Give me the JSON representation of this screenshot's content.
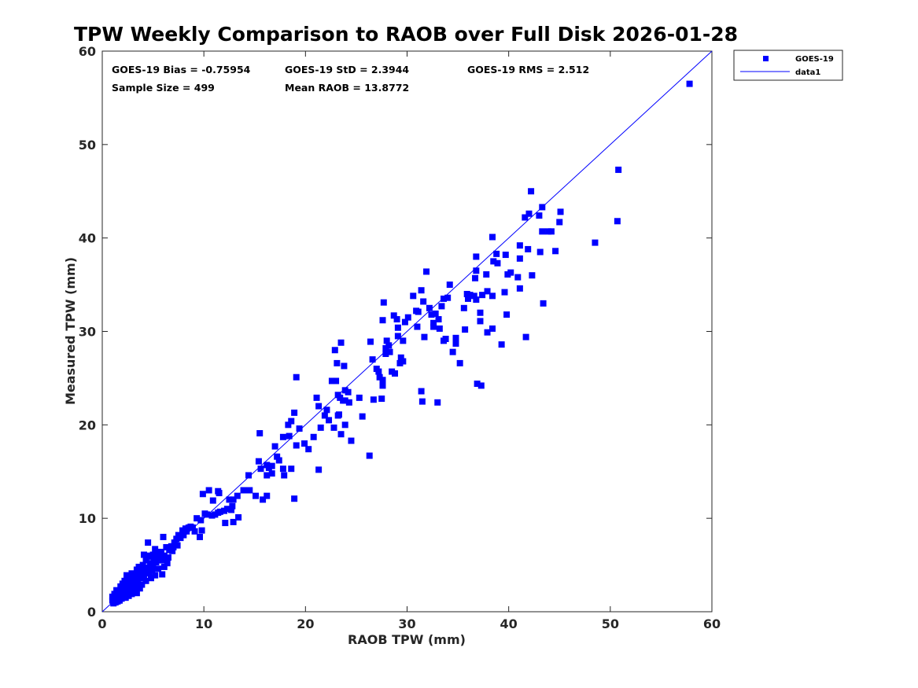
{
  "chart_data": {
    "type": "scatter",
    "title": "TPW Weekly Comparison to RAOB over Full Disk 2026-01-28",
    "xlabel": "RAOB TPW (mm)",
    "ylabel": "Measured TPW (mm)",
    "xlim": [
      0,
      60
    ],
    "ylim": [
      0,
      60
    ],
    "xticks": [
      "0",
      "10",
      "20",
      "30",
      "40",
      "50",
      "60"
    ],
    "yticks": [
      "0",
      "10",
      "20",
      "30",
      "40",
      "50",
      "60"
    ],
    "grid": false,
    "legend_position": "outside top-right",
    "stats": {
      "bias": "GOES-19 Bias = -0.75954",
      "std": "GOES-19 StD = 2.3944",
      "rms": "GOES-19 RMS = 2.512",
      "sample_size": "Sample Size = 499",
      "mean_raob": "Mean RAOB = 13.8772"
    },
    "series": [
      {
        "name": "GOES-19",
        "marker": "square",
        "color": "#0000ff",
        "points": [
          [
            57.8,
            56.5
          ],
          [
            50.8,
            47.3
          ],
          [
            50.7,
            41.8
          ],
          [
            48.5,
            39.5
          ],
          [
            45.1,
            42.8
          ],
          [
            45.0,
            41.7
          ],
          [
            44.6,
            38.6
          ],
          [
            43.4,
            33.0
          ],
          [
            43.3,
            40.7
          ],
          [
            43.9,
            40.7
          ],
          [
            44.2,
            40.7
          ],
          [
            43.3,
            43.3
          ],
          [
            43.0,
            42.4
          ],
          [
            43.1,
            38.5
          ],
          [
            42.2,
            45.0
          ],
          [
            42.3,
            36.0
          ],
          [
            42.0,
            42.6
          ],
          [
            41.6,
            42.2
          ],
          [
            41.9,
            38.8
          ],
          [
            41.7,
            29.4
          ],
          [
            41.1,
            37.8
          ],
          [
            41.1,
            34.6
          ],
          [
            41.1,
            39.2
          ],
          [
            40.9,
            35.8
          ],
          [
            40.2,
            36.3
          ],
          [
            39.9,
            36.1
          ],
          [
            39.7,
            38.2
          ],
          [
            39.8,
            31.8
          ],
          [
            39.6,
            34.2
          ],
          [
            39.3,
            28.6
          ],
          [
            38.9,
            37.3
          ],
          [
            38.8,
            38.3
          ],
          [
            38.5,
            37.5
          ],
          [
            38.4,
            30.3
          ],
          [
            38.4,
            33.8
          ],
          [
            38.4,
            40.1
          ],
          [
            37.9,
            29.9
          ],
          [
            37.9,
            34.3
          ],
          [
            37.8,
            36.1
          ],
          [
            37.4,
            33.9
          ],
          [
            37.3,
            24.2
          ],
          [
            37.2,
            31.1
          ],
          [
            37.2,
            32.0
          ],
          [
            36.9,
            24.4
          ],
          [
            36.8,
            33.4
          ],
          [
            36.6,
            33.8
          ],
          [
            36.7,
            35.7
          ],
          [
            36.8,
            36.5
          ],
          [
            36.8,
            38.0
          ],
          [
            36.2,
            33.9
          ],
          [
            36.0,
            33.5
          ],
          [
            35.9,
            34.0
          ],
          [
            35.7,
            30.2
          ],
          [
            35.6,
            32.5
          ],
          [
            35.2,
            26.6
          ],
          [
            34.8,
            29.3
          ],
          [
            34.8,
            28.7
          ],
          [
            34.5,
            27.8
          ],
          [
            34.0,
            33.6
          ],
          [
            34.2,
            35.0
          ],
          [
            33.8,
            29.2
          ],
          [
            33.6,
            29.0
          ],
          [
            33.6,
            33.5
          ],
          [
            33.4,
            32.7
          ],
          [
            33.1,
            31.3
          ],
          [
            32.8,
            31.9
          ],
          [
            32.6,
            30.5
          ],
          [
            32.6,
            30.9
          ],
          [
            33.2,
            30.3
          ],
          [
            33.0,
            22.4
          ],
          [
            32.4,
            31.8
          ],
          [
            32.2,
            32.5
          ],
          [
            31.9,
            36.4
          ],
          [
            31.7,
            29.4
          ],
          [
            31.6,
            33.2
          ],
          [
            31.4,
            23.6
          ],
          [
            31.5,
            22.5
          ],
          [
            31.4,
            34.4
          ],
          [
            31.0,
            30.5
          ],
          [
            31.1,
            32.1
          ],
          [
            30.9,
            32.2
          ],
          [
            30.6,
            33.8
          ],
          [
            30.1,
            31.5
          ],
          [
            29.8,
            31.0
          ],
          [
            29.6,
            26.8
          ],
          [
            29.6,
            29.0
          ],
          [
            29.4,
            27.2
          ],
          [
            29.3,
            26.6
          ],
          [
            29.1,
            30.4
          ],
          [
            29.1,
            29.5
          ],
          [
            29.0,
            31.3
          ],
          [
            28.8,
            25.5
          ],
          [
            28.7,
            31.7
          ],
          [
            28.5,
            25.7
          ],
          [
            28.2,
            28.5
          ],
          [
            28.3,
            27.8
          ],
          [
            28.0,
            29.0
          ],
          [
            27.9,
            28.2
          ],
          [
            27.9,
            27.6
          ],
          [
            27.7,
            33.1
          ],
          [
            27.6,
            31.2
          ],
          [
            27.6,
            24.8
          ],
          [
            27.6,
            24.2
          ],
          [
            27.5,
            22.8
          ],
          [
            27.3,
            25.1
          ],
          [
            27.2,
            25.7
          ],
          [
            27.0,
            26.0
          ],
          [
            26.6,
            27.0
          ],
          [
            26.7,
            22.7
          ],
          [
            26.4,
            28.9
          ],
          [
            26.3,
            16.7
          ],
          [
            25.6,
            20.9
          ],
          [
            25.3,
            22.9
          ],
          [
            24.5,
            18.3
          ],
          [
            24.3,
            22.4
          ],
          [
            24.2,
            23.5
          ],
          [
            23.9,
            23.7
          ],
          [
            23.8,
            26.3
          ],
          [
            23.9,
            22.6
          ],
          [
            23.7,
            22.6
          ],
          [
            23.9,
            20.0
          ],
          [
            23.5,
            28.8
          ],
          [
            23.4,
            22.9
          ],
          [
            23.3,
            21.1
          ],
          [
            23.5,
            19.0
          ],
          [
            23.2,
            21.0
          ],
          [
            23.0,
            24.7
          ],
          [
            23.1,
            26.6
          ],
          [
            22.9,
            28.0
          ],
          [
            23.2,
            23.2
          ],
          [
            22.8,
            19.7
          ],
          [
            22.6,
            24.7
          ],
          [
            22.3,
            20.5
          ],
          [
            22.1,
            21.6
          ],
          [
            21.9,
            21.0
          ],
          [
            21.5,
            19.7
          ],
          [
            21.3,
            22.0
          ],
          [
            21.1,
            22.9
          ],
          [
            21.3,
            15.2
          ],
          [
            20.8,
            18.7
          ],
          [
            20.3,
            17.4
          ],
          [
            19.9,
            18.0
          ],
          [
            19.4,
            19.6
          ],
          [
            19.1,
            17.8
          ],
          [
            19.1,
            25.1
          ],
          [
            18.9,
            21.3
          ],
          [
            18.6,
            20.4
          ],
          [
            18.9,
            12.1
          ],
          [
            18.6,
            15.3
          ],
          [
            18.4,
            18.8
          ],
          [
            18.3,
            20.0
          ],
          [
            17.8,
            18.7
          ],
          [
            17.9,
            14.6
          ],
          [
            17.8,
            15.3
          ],
          [
            17.4,
            16.2
          ],
          [
            17.2,
            16.6
          ],
          [
            17.0,
            17.7
          ],
          [
            16.7,
            14.8
          ],
          [
            16.7,
            15.6
          ],
          [
            16.4,
            15.4
          ],
          [
            16.2,
            15.7
          ],
          [
            16.2,
            14.6
          ],
          [
            16.2,
            12.4
          ],
          [
            15.8,
            12.0
          ],
          [
            15.6,
            15.3
          ],
          [
            15.5,
            19.1
          ],
          [
            15.4,
            16.1
          ],
          [
            15.1,
            12.4
          ],
          [
            14.5,
            13.0
          ],
          [
            14.4,
            14.6
          ],
          [
            13.9,
            13.0
          ],
          [
            13.4,
            10.1
          ],
          [
            13.3,
            12.4
          ],
          [
            12.9,
            12.0
          ],
          [
            12.8,
            11.3
          ],
          [
            12.9,
            9.6
          ],
          [
            12.7,
            10.9
          ],
          [
            12.5,
            12.0
          ],
          [
            12.3,
            11.0
          ],
          [
            12.1,
            9.5
          ],
          [
            12.0,
            10.8
          ],
          [
            11.6,
            10.7
          ],
          [
            11.5,
            12.7
          ],
          [
            11.4,
            12.9
          ],
          [
            11.4,
            10.6
          ],
          [
            11.1,
            10.4
          ],
          [
            10.9,
            11.9
          ],
          [
            10.8,
            10.3
          ],
          [
            10.5,
            13.0
          ],
          [
            10.3,
            10.4
          ],
          [
            10.1,
            10.5
          ],
          [
            9.9,
            12.6
          ],
          [
            9.8,
            8.7
          ],
          [
            9.7,
            9.8
          ],
          [
            9.6,
            8.0
          ],
          [
            9.3,
            10.0
          ],
          [
            9.1,
            8.6
          ],
          [
            8.9,
            9.0
          ],
          [
            8.7,
            9.1
          ],
          [
            8.5,
            9.0
          ],
          [
            8.3,
            8.6
          ],
          [
            8.2,
            8.9
          ],
          [
            8.0,
            8.2
          ],
          [
            7.9,
            8.7
          ],
          [
            7.7,
            7.9
          ],
          [
            7.5,
            8.2
          ],
          [
            7.4,
            7.1
          ],
          [
            7.3,
            7.8
          ],
          [
            7.1,
            7.4
          ],
          [
            7.0,
            6.9
          ],
          [
            6.9,
            6.5
          ],
          [
            6.8,
            7.0
          ],
          [
            6.6,
            6.6
          ],
          [
            6.5,
            5.8
          ],
          [
            6.4,
            5.2
          ],
          [
            6.3,
            6.9
          ],
          [
            6.1,
            6.0
          ],
          [
            6.1,
            4.8
          ],
          [
            6.0,
            8.0
          ],
          [
            5.9,
            4.0
          ],
          [
            5.9,
            5.5
          ],
          [
            5.8,
            6.4
          ],
          [
            5.6,
            5.9
          ],
          [
            5.5,
            4.6
          ],
          [
            5.4,
            6.4
          ],
          [
            5.3,
            5.3
          ],
          [
            5.2,
            3.9
          ],
          [
            5.2,
            6.7
          ],
          [
            5.1,
            5.7
          ],
          [
            5.0,
            4.9
          ],
          [
            5.0,
            6.1
          ],
          [
            4.9,
            4.5
          ],
          [
            4.8,
            3.6
          ],
          [
            4.8,
            5.9
          ],
          [
            4.7,
            5.2
          ],
          [
            4.6,
            4.1
          ],
          [
            4.5,
            7.4
          ],
          [
            4.5,
            6.0
          ],
          [
            4.4,
            4.7
          ],
          [
            4.3,
            3.3
          ],
          [
            4.3,
            5.5
          ],
          [
            4.2,
            4.4
          ],
          [
            4.1,
            3.9
          ],
          [
            4.1,
            6.1
          ],
          [
            4.0,
            5.0
          ],
          [
            3.9,
            2.9
          ],
          [
            3.9,
            4.6
          ],
          [
            3.8,
            3.6
          ],
          [
            3.7,
            4.2
          ],
          [
            3.7,
            2.5
          ],
          [
            3.6,
            4.8
          ],
          [
            3.5,
            3.0
          ],
          [
            3.5,
            3.8
          ],
          [
            3.4,
            2.0
          ],
          [
            3.4,
            4.5
          ],
          [
            3.3,
            3.3
          ],
          [
            3.2,
            2.7
          ],
          [
            3.2,
            3.9
          ],
          [
            3.1,
            2.3
          ],
          [
            3.0,
            3.5
          ],
          [
            3.0,
            2.9
          ],
          [
            2.9,
            4.1
          ],
          [
            2.9,
            1.9
          ],
          [
            2.8,
            3.0
          ],
          [
            2.8,
            2.5
          ],
          [
            2.7,
            3.6
          ],
          [
            2.6,
            2.2
          ],
          [
            2.6,
            1.7
          ],
          [
            2.5,
            3.2
          ],
          [
            2.5,
            2.8
          ],
          [
            2.4,
            2.0
          ],
          [
            2.4,
            3.9
          ],
          [
            2.3,
            2.4
          ],
          [
            2.3,
            1.5
          ],
          [
            2.2,
            2.9
          ],
          [
            2.2,
            3.3
          ],
          [
            2.1,
            1.8
          ],
          [
            2.1,
            2.5
          ],
          [
            2.0,
            2.1
          ],
          [
            2.0,
            3.0
          ],
          [
            1.9,
            1.4
          ],
          [
            1.9,
            2.4
          ],
          [
            1.8,
            1.9
          ],
          [
            1.8,
            2.7
          ],
          [
            1.7,
            1.2
          ],
          [
            1.7,
            2.2
          ],
          [
            1.6,
            1.6
          ],
          [
            1.6,
            2.0
          ],
          [
            1.5,
            1.1
          ],
          [
            1.5,
            1.8
          ],
          [
            1.4,
            1.4
          ],
          [
            1.4,
            2.3
          ],
          [
            1.3,
            1.0
          ],
          [
            1.3,
            1.7
          ],
          [
            1.2,
            1.3
          ],
          [
            1.2,
            1.9
          ],
          [
            1.1,
            0.9
          ],
          [
            1.1,
            1.5
          ],
          [
            1.0,
            1.2
          ],
          [
            1.0,
            1.6
          ]
        ]
      },
      {
        "name": "data1",
        "type": "line",
        "color": "#0000ff",
        "x": [
          0,
          60
        ],
        "y": [
          0,
          60
        ]
      }
    ]
  }
}
